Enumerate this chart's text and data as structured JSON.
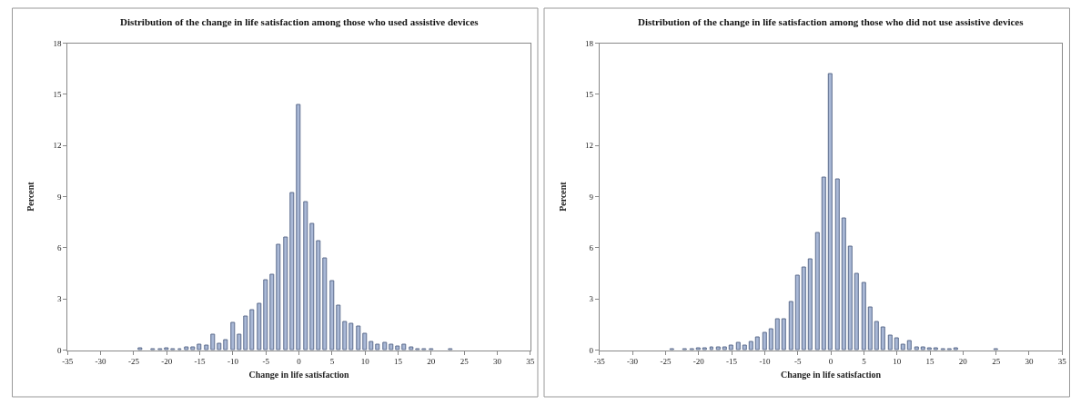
{
  "chart_data": [
    {
      "type": "bar",
      "title": "Distribution of the change in life satisfaction among those who used assistive devices",
      "xlabel": "Change in life satisfaction",
      "ylabel": "Percent",
      "color": "#a9b8d6",
      "x": [
        -24,
        -22,
        -21,
        -20,
        -19,
        -18,
        -17,
        -16,
        -15,
        -14,
        -13,
        -12,
        -11,
        -10,
        -9,
        -8,
        -7,
        -6,
        -5,
        -4,
        -3,
        -2,
        -1,
        0,
        1,
        2,
        3,
        4,
        5,
        6,
        7,
        8,
        9,
        10,
        11,
        12,
        13,
        14,
        15,
        16,
        17,
        18,
        19,
        20,
        23
      ],
      "values": [
        0.1,
        0.05,
        0.05,
        0.1,
        0.05,
        0.05,
        0.15,
        0.15,
        0.35,
        0.25,
        0.9,
        0.4,
        0.6,
        1.6,
        0.9,
        2.0,
        2.35,
        2.7,
        4.1,
        4.4,
        6.2,
        6.6,
        9.2,
        14.4,
        8.7,
        7.4,
        6.4,
        5.4,
        4.05,
        2.6,
        1.65,
        1.55,
        1.4,
        0.95,
        0.5,
        0.35,
        0.45,
        0.35,
        0.2,
        0.3,
        0.15,
        0.05,
        0.05,
        0.05,
        0.05
      ],
      "xlim": [
        -35,
        35
      ],
      "xticks": [
        -35,
        -30,
        -25,
        -20,
        -15,
        -10,
        -5,
        0,
        5,
        10,
        15,
        20,
        25,
        30,
        35
      ],
      "ylim": [
        0,
        18
      ],
      "yticks": [
        0,
        3,
        6,
        9,
        12,
        15,
        18
      ]
    },
    {
      "type": "bar",
      "title": "Distribution of the change in life satisfaction among those who did not use assistive devices",
      "xlabel": "Change in life satisfaction",
      "ylabel": "Percent",
      "color": "#a9b8d6",
      "x": [
        -24,
        -22,
        -21,
        -20,
        -19,
        -18,
        -17,
        -16,
        -15,
        -14,
        -13,
        -12,
        -11,
        -10,
        -9,
        -8,
        -7,
        -6,
        -5,
        -4,
        -3,
        -2,
        -1,
        0,
        1,
        2,
        3,
        4,
        5,
        6,
        7,
        8,
        9,
        10,
        11,
        12,
        13,
        14,
        15,
        16,
        17,
        18,
        19,
        25
      ],
      "values": [
        0.05,
        0.05,
        0.05,
        0.1,
        0.1,
        0.15,
        0.15,
        0.15,
        0.25,
        0.45,
        0.25,
        0.5,
        0.75,
        1.0,
        1.25,
        1.8,
        1.8,
        2.85,
        4.35,
        4.85,
        5.35,
        6.85,
        10.1,
        16.2,
        10.0,
        7.7,
        6.05,
        4.5,
        3.95,
        2.5,
        1.65,
        1.35,
        0.85,
        0.7,
        0.3,
        0.55,
        0.15,
        0.15,
        0.1,
        0.1,
        0.05,
        0.05,
        0.1,
        0.05
      ],
      "xlim": [
        -35,
        35
      ],
      "xticks": [
        -35,
        -30,
        -25,
        -20,
        -15,
        -10,
        -5,
        0,
        5,
        10,
        15,
        20,
        25,
        30,
        35
      ],
      "ylim": [
        0,
        18
      ],
      "yticks": [
        0,
        3,
        6,
        9,
        12,
        15,
        18
      ]
    }
  ]
}
